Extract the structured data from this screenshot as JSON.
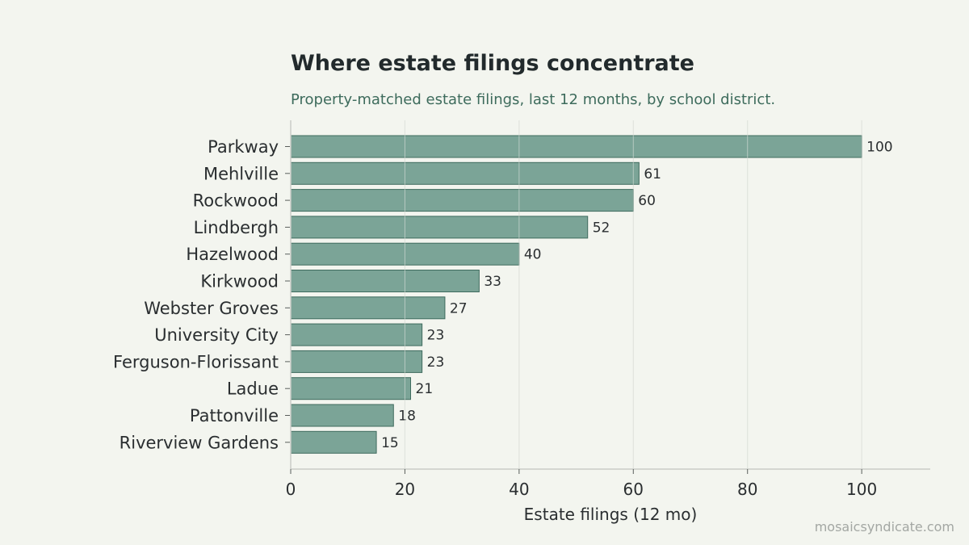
{
  "chart_data": {
    "type": "bar",
    "orientation": "horizontal",
    "title": "Where estate filings concentrate",
    "subtitle": "Property-matched estate filings, last 12 months, by school district.",
    "xlabel": "Estate filings (12 mo)",
    "ylabel": "",
    "categories": [
      "Parkway",
      "Mehlville",
      "Rockwood",
      "Lindbergh",
      "Hazelwood",
      "Kirkwood",
      "Webster Groves",
      "University City",
      "Ferguson-Florissant",
      "Ladue",
      "Pattonville",
      "Riverview Gardens"
    ],
    "values": [
      100,
      61,
      60,
      52,
      40,
      33,
      27,
      23,
      23,
      21,
      18,
      15
    ],
    "xlim": [
      0,
      112
    ],
    "xticks": [
      0,
      20,
      40,
      60,
      80,
      100
    ],
    "grid": "vertical",
    "bar_color": "#7ba497",
    "bar_edge_color": "#3f6b5e",
    "grid_color": "#d9dcd6"
  },
  "watermark": "mosaicsyndicate.com"
}
